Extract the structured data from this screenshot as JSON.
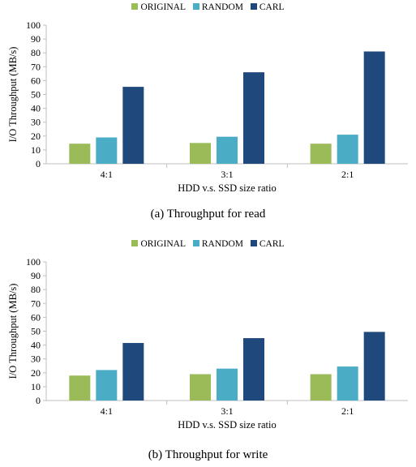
{
  "colors": {
    "ORIGINAL": "#9bbb59",
    "RANDOM": "#4bacc6",
    "CARL": "#1f497d",
    "axis": "#bfbfbf"
  },
  "legend": [
    "ORIGINAL",
    "RANDOM",
    "CARL"
  ],
  "chart_data": [
    {
      "type": "bar",
      "caption": "(a) Throughput for read",
      "xlabel": "HDD v.s. SSD size ratio",
      "ylabel": "I/O Throughput (MB/s)",
      "ylim": [
        0,
        100
      ],
      "yticks": [
        0,
        10,
        20,
        30,
        40,
        50,
        60,
        70,
        80,
        90,
        100
      ],
      "categories": [
        "4:1",
        "3:1",
        "2:1"
      ],
      "grid": false,
      "legend_position": "top",
      "series": [
        {
          "name": "ORIGINAL",
          "values": [
            14.5,
            15,
            14.5
          ]
        },
        {
          "name": "RANDOM",
          "values": [
            19,
            19.5,
            21
          ]
        },
        {
          "name": "CARL",
          "values": [
            55.5,
            66,
            81
          ]
        }
      ]
    },
    {
      "type": "bar",
      "caption": "(b) Throughput for write",
      "xlabel": "HDD v.s. SSD size ratio",
      "ylabel": "I/O Throughput (MB/s)",
      "ylim": [
        0,
        100
      ],
      "yticks": [
        0,
        10,
        20,
        30,
        40,
        50,
        60,
        70,
        80,
        90,
        100
      ],
      "categories": [
        "4:1",
        "3:1",
        "2:1"
      ],
      "grid": false,
      "legend_position": "top",
      "series": [
        {
          "name": "ORIGINAL",
          "values": [
            18,
            19,
            19
          ]
        },
        {
          "name": "RANDOM",
          "values": [
            22,
            23,
            24.5
          ]
        },
        {
          "name": "CARL",
          "values": [
            41.5,
            45,
            49.5
          ]
        }
      ]
    }
  ]
}
